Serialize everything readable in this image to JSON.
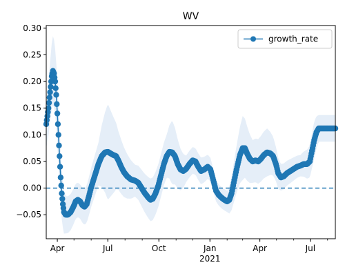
{
  "chart_data": {
    "type": "line",
    "title": "WV",
    "xlabel": "",
    "ylabel": "",
    "x_tick_labels": [
      "Apr",
      "Jul",
      "Oct",
      "Jan",
      "Apr",
      "Jul"
    ],
    "x_tick_dates": [
      "2020-04-01",
      "2020-07-01",
      "2020-10-01",
      "2021-01-01",
      "2021-04-01",
      "2021-07-01"
    ],
    "x_year_label": "2021",
    "xlim": [
      "2020-03-12",
      "2021-08-15"
    ],
    "ylim": [
      -0.095,
      0.305
    ],
    "y_ticks": [
      -0.05,
      0.0,
      0.05,
      0.1,
      0.15,
      0.2,
      0.25,
      0.3
    ],
    "y_tick_labels": [
      "−0.05",
      "0.00",
      "0.05",
      "0.10",
      "0.15",
      "0.20",
      "0.25",
      "0.30"
    ],
    "reference_line": {
      "y": 0.0,
      "style": "dashed"
    },
    "legend": {
      "position": "top-right",
      "entries": [
        "growth_rate"
      ]
    },
    "grid": false,
    "colors": {
      "series": "#1f77b4",
      "band": "#dce8f5",
      "reference": "#1f77b4"
    },
    "series": [
      {
        "name": "growth_rate",
        "marker": "circle",
        "points": [
          [
            "2020-03-12",
            0.12
          ],
          [
            "2020-03-16",
            0.15
          ],
          [
            "2020-03-19",
            0.18
          ],
          [
            "2020-03-22",
            0.21
          ],
          [
            "2020-03-24",
            0.22
          ],
          [
            "2020-03-26",
            0.215
          ],
          [
            "2020-03-28",
            0.2
          ],
          [
            "2020-03-30",
            0.175
          ],
          [
            "2020-04-01",
            0.14
          ],
          [
            "2020-04-03",
            0.1
          ],
          [
            "2020-04-05",
            0.06
          ],
          [
            "2020-04-07",
            0.02
          ],
          [
            "2020-04-09",
            -0.01
          ],
          [
            "2020-04-11",
            -0.03
          ],
          [
            "2020-04-13",
            -0.045
          ],
          [
            "2020-04-16",
            -0.05
          ],
          [
            "2020-04-20",
            -0.05
          ],
          [
            "2020-04-25",
            -0.045
          ],
          [
            "2020-04-30",
            -0.035
          ],
          [
            "2020-05-04",
            -0.025
          ],
          [
            "2020-05-08",
            -0.022
          ],
          [
            "2020-05-12",
            -0.025
          ],
          [
            "2020-05-16",
            -0.032
          ],
          [
            "2020-05-20",
            -0.035
          ],
          [
            "2020-05-24",
            -0.03
          ],
          [
            "2020-05-28",
            -0.015
          ],
          [
            "2020-06-02",
            0.005
          ],
          [
            "2020-06-08",
            0.025
          ],
          [
            "2020-06-14",
            0.045
          ],
          [
            "2020-06-20",
            0.06
          ],
          [
            "2020-06-26",
            0.067
          ],
          [
            "2020-07-01",
            0.068
          ],
          [
            "2020-07-06",
            0.065
          ],
          [
            "2020-07-11",
            0.062
          ],
          [
            "2020-07-16",
            0.06
          ],
          [
            "2020-07-20",
            0.052
          ],
          [
            "2020-07-25",
            0.04
          ],
          [
            "2020-07-30",
            0.03
          ],
          [
            "2020-08-05",
            0.022
          ],
          [
            "2020-08-12",
            0.016
          ],
          [
            "2020-08-19",
            0.014
          ],
          [
            "2020-08-25",
            0.01
          ],
          [
            "2020-08-31",
            0.0
          ],
          [
            "2020-09-06",
            -0.01
          ],
          [
            "2020-09-12",
            -0.018
          ],
          [
            "2020-09-16",
            -0.022
          ],
          [
            "2020-09-20",
            -0.02
          ],
          [
            "2020-09-25",
            -0.01
          ],
          [
            "2020-09-30",
            0.005
          ],
          [
            "2020-10-05",
            0.025
          ],
          [
            "2020-10-10",
            0.045
          ],
          [
            "2020-10-15",
            0.06
          ],
          [
            "2020-10-20",
            0.068
          ],
          [
            "2020-10-25",
            0.067
          ],
          [
            "2020-10-30",
            0.06
          ],
          [
            "2020-11-04",
            0.045
          ],
          [
            "2020-11-09",
            0.035
          ],
          [
            "2020-11-14",
            0.032
          ],
          [
            "2020-11-19",
            0.036
          ],
          [
            "2020-11-25",
            0.045
          ],
          [
            "2020-12-01",
            0.052
          ],
          [
            "2020-12-06",
            0.05
          ],
          [
            "2020-12-11",
            0.04
          ],
          [
            "2020-12-16",
            0.032
          ],
          [
            "2020-12-22",
            0.035
          ],
          [
            "2020-12-28",
            0.04
          ],
          [
            "2021-01-02",
            0.035
          ],
          [
            "2021-01-07",
            0.015
          ],
          [
            "2021-01-12",
            -0.005
          ],
          [
            "2021-01-17",
            -0.013
          ],
          [
            "2021-01-22",
            -0.018
          ],
          [
            "2021-01-27",
            -0.022
          ],
          [
            "2021-02-01",
            -0.025
          ],
          [
            "2021-02-05",
            -0.022
          ],
          [
            "2021-02-09",
            -0.01
          ],
          [
            "2021-02-14",
            0.015
          ],
          [
            "2021-02-19",
            0.04
          ],
          [
            "2021-02-24",
            0.062
          ],
          [
            "2021-03-01",
            0.075
          ],
          [
            "2021-03-05",
            0.075
          ],
          [
            "2021-03-09",
            0.065
          ],
          [
            "2021-03-14",
            0.055
          ],
          [
            "2021-03-19",
            0.05
          ],
          [
            "2021-03-24",
            0.052
          ],
          [
            "2021-03-29",
            0.05
          ],
          [
            "2021-04-03",
            0.055
          ],
          [
            "2021-04-08",
            0.062
          ],
          [
            "2021-04-14",
            0.067
          ],
          [
            "2021-04-20",
            0.065
          ],
          [
            "2021-04-25",
            0.06
          ],
          [
            "2021-04-30",
            0.045
          ],
          [
            "2021-05-04",
            0.028
          ],
          [
            "2021-05-09",
            0.02
          ],
          [
            "2021-05-14",
            0.022
          ],
          [
            "2021-05-20",
            0.028
          ],
          [
            "2021-05-26",
            0.032
          ],
          [
            "2021-06-01",
            0.036
          ],
          [
            "2021-06-07",
            0.04
          ],
          [
            "2021-06-13",
            0.042
          ],
          [
            "2021-06-19",
            0.045
          ],
          [
            "2021-06-25",
            0.045
          ],
          [
            "2021-06-30",
            0.05
          ],
          [
            "2021-07-04",
            0.07
          ],
          [
            "2021-07-08",
            0.09
          ],
          [
            "2021-07-12",
            0.105
          ],
          [
            "2021-07-16",
            0.112
          ],
          [
            "2021-07-22",
            0.112
          ],
          [
            "2021-07-30",
            0.112
          ],
          [
            "2021-08-07",
            0.112
          ],
          [
            "2021-08-15",
            0.112
          ]
        ],
        "band_half_width": [
          [
            "2020-03-12",
            0.045
          ],
          [
            "2020-03-24",
            0.065
          ],
          [
            "2020-04-05",
            0.055
          ],
          [
            "2020-04-16",
            0.035
          ],
          [
            "2020-05-12",
            0.032
          ],
          [
            "2020-06-14",
            0.04
          ],
          [
            "2020-07-01",
            0.09
          ],
          [
            "2020-07-20",
            0.055
          ],
          [
            "2020-08-19",
            0.03
          ],
          [
            "2020-09-16",
            0.04
          ],
          [
            "2020-10-15",
            0.04
          ],
          [
            "2020-10-25",
            0.06
          ],
          [
            "2020-11-19",
            0.025
          ],
          [
            "2020-12-16",
            0.025
          ],
          [
            "2021-01-12",
            0.02
          ],
          [
            "2021-02-01",
            0.02
          ],
          [
            "2021-03-01",
            0.06
          ],
          [
            "2021-03-19",
            0.04
          ],
          [
            "2021-04-14",
            0.045
          ],
          [
            "2021-05-09",
            0.025
          ],
          [
            "2021-06-13",
            0.02
          ],
          [
            "2021-07-08",
            0.035
          ],
          [
            "2021-07-16",
            0.025
          ],
          [
            "2021-08-15",
            0.025
          ]
        ]
      }
    ]
  }
}
